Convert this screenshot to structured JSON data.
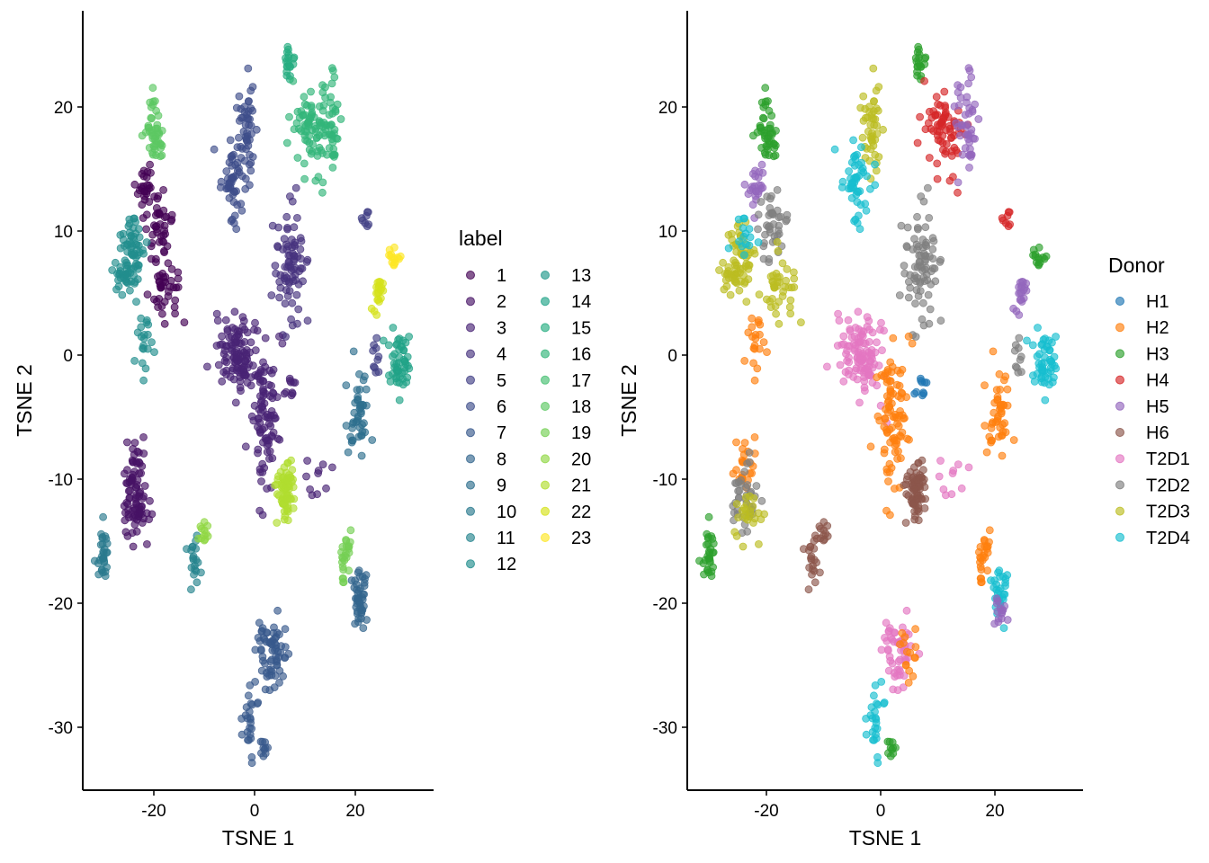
{
  "chart_data": [
    {
      "type": "scatter",
      "xlabel": "TSNE 1",
      "ylabel": "TSNE 2",
      "xlim": [
        -34,
        35.5
      ],
      "ylim": [
        -35,
        27.8
      ],
      "xticks": [
        "-20",
        "0",
        "20"
      ],
      "yticks": [
        "-30",
        "-20",
        "-10",
        "0",
        "10",
        "20"
      ],
      "grid": false,
      "color_by": "label",
      "legend": {
        "title": "label",
        "placement": "right",
        "entries": [
          "1",
          "2",
          "3",
          "4",
          "5",
          "6",
          "7",
          "8",
          "9",
          "10",
          "11",
          "12",
          "13",
          "14",
          "15",
          "16",
          "17",
          "18",
          "19",
          "20",
          "21",
          "22",
          "23"
        ]
      },
      "palette": [
        "#440154",
        "#471365",
        "#482374",
        "#46327E",
        "#424086",
        "#3D4D8A",
        "#38598C",
        "#33658D",
        "#2E6F8E",
        "#2A7A8E",
        "#26848E",
        "#228E8D",
        "#1F988B",
        "#20A387",
        "#26AD81",
        "#33B67A",
        "#45BF70",
        "#5CC863",
        "#75D054",
        "#90D743",
        "#B0DD2F",
        "#D5E21A",
        "#FDE725"
      ]
    },
    {
      "type": "scatter",
      "xlabel": "TSNE 1",
      "ylabel": "TSNE 2",
      "xlim": [
        -34,
        35.5
      ],
      "ylim": [
        -35,
        27.8
      ],
      "xticks": [
        "-20",
        "0",
        "20"
      ],
      "yticks": [
        "-30",
        "-20",
        "-10",
        "0",
        "10",
        "20"
      ],
      "grid": false,
      "color_by": "Donor",
      "legend": {
        "title": "Donor",
        "placement": "right",
        "entries": [
          "H1",
          "H2",
          "H3",
          "H4",
          "H5",
          "H6",
          "T2D1",
          "T2D2",
          "T2D3",
          "T2D4"
        ]
      },
      "palette": [
        "#1F77B4",
        "#FF7F0E",
        "#2CA02C",
        "#D62728",
        "#9467BD",
        "#8C564B",
        "#E377C2",
        "#7F7F7F",
        "#BCBD22",
        "#17BECF"
      ]
    }
  ],
  "clusters": [
    {
      "label": "1",
      "donor": "H5",
      "center": [
        -22,
        13
      ],
      "spread": [
        1.2,
        1.2
      ],
      "n": 25
    },
    {
      "label": "1",
      "donor": "T2D2",
      "center": [
        -19,
        10
      ],
      "spread": [
        1.2,
        1.5
      ],
      "n": 40
    },
    {
      "label": "1",
      "donor": "T2D3",
      "center": [
        -18,
        5.5
      ],
      "spread": [
        1.4,
        1.5
      ],
      "n": 40
    },
    {
      "label": "12",
      "donor": "T2D3",
      "center": [
        -25,
        7.5
      ],
      "spread": [
        1.5,
        1.5
      ],
      "n": 70
    },
    {
      "label": "12",
      "donor": "T2D4",
      "center": [
        -24,
        9.5
      ],
      "spread": [
        1,
        0.8
      ],
      "n": 15
    },
    {
      "label": "12",
      "donor": "H2",
      "center": [
        -22,
        1
      ],
      "spread": [
        0.8,
        1.2
      ],
      "n": 20
    },
    {
      "label": "18",
      "donor": "H3",
      "center": [
        -20,
        18
      ],
      "spread": [
        1,
        1.3
      ],
      "n": 45
    },
    {
      "label": "2",
      "donor": "H2",
      "center": [
        -24,
        -8.5
      ],
      "spread": [
        1,
        1.5
      ],
      "n": 25
    },
    {
      "label": "2",
      "donor": "T2D2",
      "center": [
        -24,
        -11.5
      ],
      "spread": [
        1.2,
        1.2
      ],
      "n": 40
    },
    {
      "label": "2",
      "donor": "T2D3",
      "center": [
        -23,
        -13
      ],
      "spread": [
        1.2,
        1
      ],
      "n": 25
    },
    {
      "label": "10",
      "donor": "H3",
      "center": [
        -30,
        -16
      ],
      "spread": [
        0.6,
        1
      ],
      "n": 30
    },
    {
      "label": "11",
      "donor": "H6",
      "center": [
        -12,
        -16.5
      ],
      "spread": [
        0.6,
        1.3
      ],
      "n": 20
    },
    {
      "label": "20",
      "donor": "H6",
      "center": [
        -10.5,
        -14
      ],
      "spread": [
        0.6,
        1
      ],
      "n": 12
    },
    {
      "label": "6",
      "donor": "T2D3",
      "center": [
        -1.5,
        18
      ],
      "spread": [
        1,
        2
      ],
      "n": 45
    },
    {
      "label": "6",
      "donor": "T2D4",
      "center": [
        -4,
        13.5
      ],
      "spread": [
        1.3,
        1.8
      ],
      "n": 50
    },
    {
      "label": "15",
      "donor": "H3",
      "center": [
        7,
        23.5
      ],
      "spread": [
        0.6,
        0.8
      ],
      "n": 20
    },
    {
      "label": "16",
      "donor": "H4",
      "center": [
        11,
        18
      ],
      "spread": [
        1.5,
        2
      ],
      "n": 70
    },
    {
      "label": "16",
      "donor": "H5",
      "center": [
        15,
        18.5
      ],
      "spread": [
        1.2,
        2
      ],
      "n": 45
    },
    {
      "label": "4",
      "donor": "T2D2",
      "center": [
        7,
        7
      ],
      "spread": [
        1.5,
        2.5
      ],
      "n": 80
    },
    {
      "label": "3",
      "donor": "T2D1",
      "center": [
        -3,
        0
      ],
      "spread": [
        2,
        1.8
      ],
      "n": 110
    },
    {
      "label": "3",
      "donor": "H2",
      "center": [
        2,
        -4.5
      ],
      "spread": [
        1.3,
        3
      ],
      "n": 90
    },
    {
      "label": "3",
      "donor": "H1",
      "center": [
        7,
        -2.5
      ],
      "spread": [
        0.6,
        0.6
      ],
      "n": 10
    },
    {
      "label": "21",
      "donor": "H6",
      "center": [
        6,
        -11
      ],
      "spread": [
        1,
        1.3
      ],
      "n": 70
    },
    {
      "label": "3",
      "donor": "T2D1",
      "center": [
        12,
        -10
      ],
      "spread": [
        1.5,
        1
      ],
      "n": 10
    },
    {
      "label": "5",
      "donor": "H4",
      "center": [
        22,
        11
      ],
      "spread": [
        0.7,
        0.7
      ],
      "n": 8
    },
    {
      "label": "23",
      "donor": "H3",
      "center": [
        27.5,
        8
      ],
      "spread": [
        0.6,
        0.6
      ],
      "n": 14
    },
    {
      "label": "22",
      "donor": "H5",
      "center": [
        24.5,
        5
      ],
      "spread": [
        0.6,
        1
      ],
      "n": 20
    },
    {
      "label": "14",
      "donor": "T2D4",
      "center": [
        28.5,
        -0.5
      ],
      "spread": [
        1,
        1.2
      ],
      "n": 50
    },
    {
      "label": "5",
      "donor": "T2D2",
      "center": [
        24,
        0
      ],
      "spread": [
        0.5,
        1
      ],
      "n": 10
    },
    {
      "label": "9",
      "donor": "H2",
      "center": [
        21,
        -5
      ],
      "spread": [
        1.2,
        2
      ],
      "n": 45
    },
    {
      "label": "19",
      "donor": "H2",
      "center": [
        18,
        -16
      ],
      "spread": [
        0.6,
        1.2
      ],
      "n": 25
    },
    {
      "label": "8",
      "donor": "T2D4",
      "center": [
        21,
        -19
      ],
      "spread": [
        0.8,
        1
      ],
      "n": 30
    },
    {
      "label": "8",
      "donor": "H5",
      "center": [
        21,
        -20.5
      ],
      "spread": [
        0.7,
        0.7
      ],
      "n": 15
    },
    {
      "label": "7",
      "donor": "T2D1",
      "center": [
        3,
        -24
      ],
      "spread": [
        1.5,
        1.5
      ],
      "n": 50
    },
    {
      "label": "7",
      "donor": "H2",
      "center": [
        5,
        -24
      ],
      "spread": [
        1,
        1
      ],
      "n": 15
    },
    {
      "label": "7",
      "donor": "T2D4",
      "center": [
        -1,
        -29
      ],
      "spread": [
        0.8,
        1.2
      ],
      "n": 25
    },
    {
      "label": "7",
      "donor": "H3",
      "center": [
        2,
        -31.5
      ],
      "spread": [
        0.4,
        0.6
      ],
      "n": 10
    }
  ]
}
